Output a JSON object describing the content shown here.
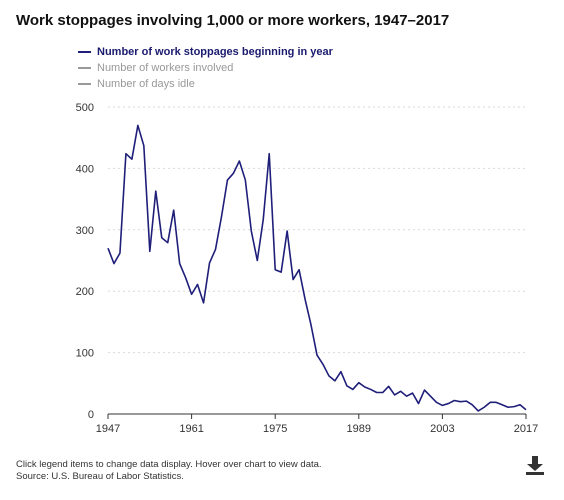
{
  "chart_data": {
    "type": "line",
    "title": "Work stoppages involving 1,000 or more workers, 1947–2017",
    "xlabel": "",
    "ylabel": "",
    "x_ticks": [
      "1947",
      "1961",
      "1975",
      "1989",
      "2003",
      "2017"
    ],
    "y_ticks": [
      "0",
      "100",
      "200",
      "300",
      "400",
      "500"
    ],
    "xlim": [
      1947,
      2017
    ],
    "ylim": [
      0,
      500
    ],
    "grid": "horizontal",
    "legend_position": "top-left",
    "legend": [
      {
        "label": "Number of work stoppages beginning in year",
        "active": true,
        "color": "#1f1f7a"
      },
      {
        "label": "Number of workers involved",
        "active": false,
        "color": "#999999"
      },
      {
        "label": "Number of days idle",
        "active": false,
        "color": "#999999"
      }
    ],
    "series": [
      {
        "name": "Number of work stoppages beginning in year",
        "color": "#1f1f7a",
        "x": [
          1947,
          1948,
          1949,
          1950,
          1951,
          1952,
          1953,
          1954,
          1955,
          1956,
          1957,
          1958,
          1959,
          1960,
          1961,
          1962,
          1963,
          1964,
          1965,
          1966,
          1967,
          1968,
          1969,
          1970,
          1971,
          1972,
          1973,
          1974,
          1975,
          1976,
          1977,
          1978,
          1979,
          1980,
          1981,
          1982,
          1983,
          1984,
          1985,
          1986,
          1987,
          1988,
          1989,
          1990,
          1991,
          1992,
          1993,
          1994,
          1995,
          1996,
          1997,
          1998,
          1999,
          2000,
          2001,
          2002,
          2003,
          2004,
          2005,
          2006,
          2007,
          2008,
          2009,
          2010,
          2011,
          2012,
          2013,
          2014,
          2015,
          2016,
          2017
        ],
        "values": [
          270,
          245,
          262,
          424,
          415,
          470,
          437,
          265,
          363,
          287,
          279,
          332,
          245,
          222,
          195,
          211,
          181,
          246,
          268,
          321,
          381,
          392,
          412,
          381,
          298,
          250,
          317,
          424,
          235,
          231,
          298,
          219,
          235,
          187,
          145,
          96,
          81,
          62,
          54,
          69,
          46,
          40,
          51,
          44,
          40,
          35,
          35,
          45,
          31,
          37,
          29,
          34,
          17,
          39,
          29,
          19,
          14,
          17,
          22,
          20,
          21,
          15,
          5,
          11,
          19,
          19,
          15,
          11,
          12,
          15,
          7
        ]
      }
    ]
  },
  "footnote": {
    "line1": "Click legend items to change data display. Hover over chart to view data.",
    "line2": "Source: U.S. Bureau of Labor Statistics."
  },
  "icons": {
    "download": "download-icon"
  }
}
